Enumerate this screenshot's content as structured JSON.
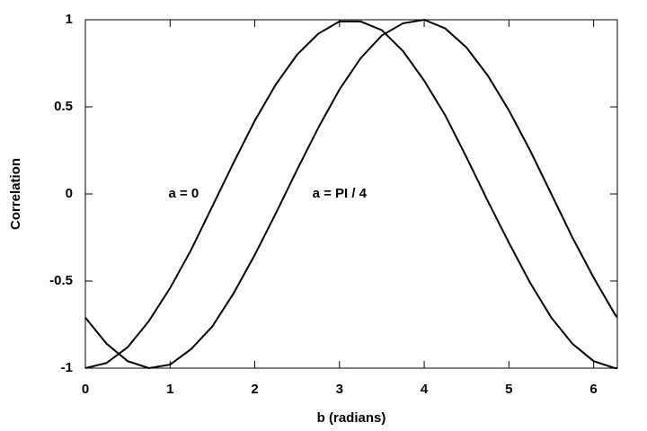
{
  "chart_data": {
    "type": "line",
    "x_label": "b (radians)",
    "y_label": "Correlation",
    "x": [
      0,
      0.25,
      0.5,
      0.75,
      1,
      1.25,
      1.5,
      1.75,
      2,
      2.25,
      2.5,
      2.75,
      3,
      3.25,
      3.5,
      3.75,
      4,
      4.25,
      4.5,
      4.75,
      5,
      5.25,
      5.5,
      5.75,
      6,
      6.25,
      6.28
    ],
    "series": [
      {
        "name": "a = 0",
        "color": "#000000",
        "values": [
          -1,
          -0.97,
          -0.88,
          -0.73,
          -0.54,
          -0.32,
          -0.07,
          0.18,
          0.42,
          0.63,
          0.8,
          0.92,
          0.99,
          0.99,
          0.94,
          0.82,
          0.65,
          0.45,
          0.21,
          -0.04,
          -0.28,
          -0.51,
          -0.71,
          -0.86,
          -0.96,
          -1,
          -1
        ]
      },
      {
        "name": "a = PI / 4",
        "color": "#000000",
        "values": [
          -0.71,
          -0.86,
          -0.96,
          -1,
          -0.98,
          -0.89,
          -0.76,
          -0.57,
          -0.35,
          -0.11,
          0.14,
          0.38,
          0.6,
          0.78,
          0.91,
          0.98,
          1,
          0.95,
          0.84,
          0.68,
          0.48,
          0.25,
          0,
          -0.25,
          -0.48,
          -0.69,
          -0.71
        ]
      }
    ],
    "xlim": [
      0,
      6.28
    ],
    "ylim": [
      -1,
      1
    ],
    "xticks": [
      0,
      1,
      2,
      3,
      4,
      5,
      6
    ],
    "yticks": [
      -1,
      -0.5,
      0,
      0.5,
      1
    ],
    "grid": false
  }
}
